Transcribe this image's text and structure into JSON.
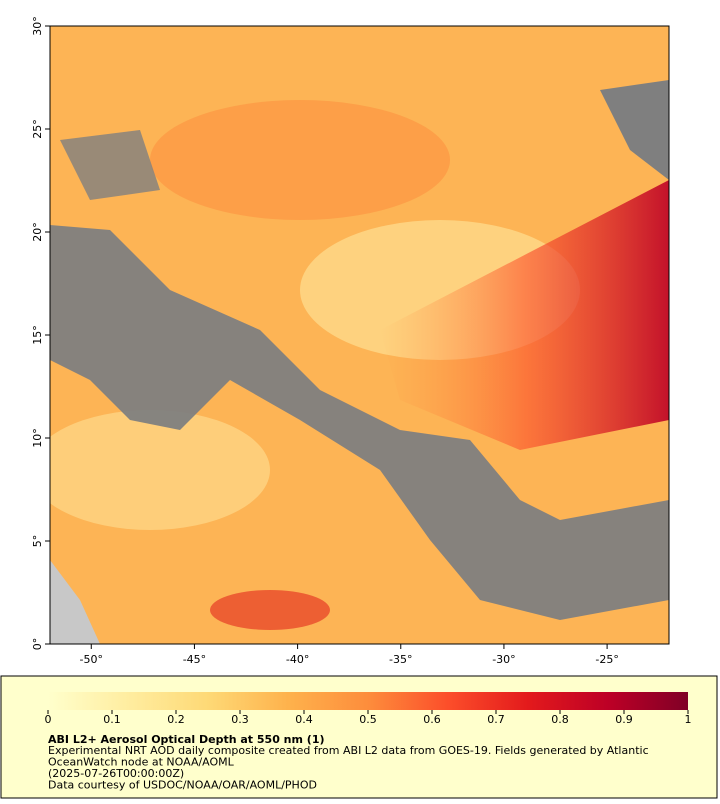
{
  "map": {
    "xlim": [
      -52,
      -22
    ],
    "ylim": [
      0,
      30
    ],
    "xticks": [
      {
        "value": -50,
        "label": "-50°"
      },
      {
        "value": -45,
        "label": "-45°"
      },
      {
        "value": -40,
        "label": "-40°"
      },
      {
        "value": -35,
        "label": "-35°"
      },
      {
        "value": -30,
        "label": "-30°"
      },
      {
        "value": -25,
        "label": "-25°"
      }
    ],
    "yticks": [
      {
        "value": 0,
        "label": "0°"
      },
      {
        "value": 5,
        "label": "5°"
      },
      {
        "value": 10,
        "label": "10°"
      },
      {
        "value": 15,
        "label": "15°"
      },
      {
        "value": 20,
        "label": "20°"
      },
      {
        "value": 25,
        "label": "25°"
      },
      {
        "value": 30,
        "label": "30°"
      }
    ]
  },
  "colorbar": {
    "lim": [
      0,
      1
    ],
    "ticks": [
      0,
      0.1,
      0.2,
      0.3,
      0.4,
      0.5,
      0.6,
      0.7,
      0.8,
      0.9,
      1
    ],
    "colors": [
      "#ffffcc",
      "#ffeda0",
      "#fed976",
      "#feb24c",
      "#fd8d3c",
      "#fc4e2a",
      "#e31a1c",
      "#bd0026",
      "#800026"
    ]
  },
  "caption": {
    "title": "ABI L2+ Aerosol Optical Depth at 550 nm (1)",
    "lines": [
      "Experimental NRT AOD daily composite created from ABI L2 data from GOES-19. Fields generated by Atlantic",
      "OceanWatch node at NOAA/AOML",
      "(2025-07-26T00:00:00Z)",
      "Data courtesy of USDOC/NOAA/OAR/AOML/PHOD"
    ]
  }
}
